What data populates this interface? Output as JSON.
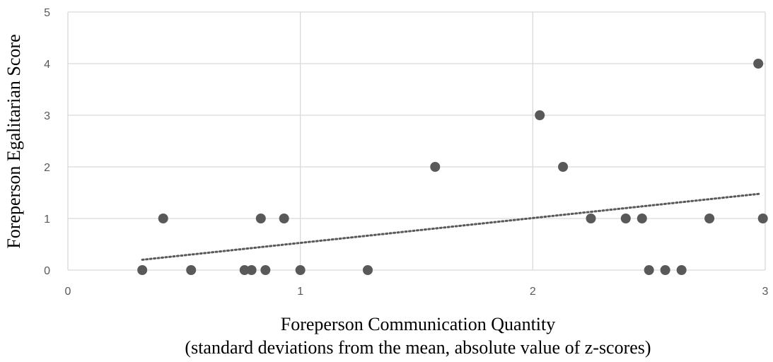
{
  "chart_data": {
    "type": "scatter",
    "xlabel": "Foreperson Communication Quantity",
    "xlabel_sub": "(standard deviations from the mean, absolute value of z-scores)",
    "ylabel": "Foreperson Egalitarian Score",
    "xlim": [
      0,
      3
    ],
    "ylim": [
      0,
      5
    ],
    "x_ticks": [
      "0",
      "1",
      "2",
      "3"
    ],
    "y_ticks": [
      "0",
      "1",
      "2",
      "3",
      "4",
      "5"
    ],
    "grid": true,
    "legend": "none",
    "trendline": {
      "style": "dotted",
      "x": [
        0.32,
        2.98
      ],
      "y": [
        0.2,
        1.48
      ]
    },
    "points": [
      {
        "x": 0.32,
        "y": 0
      },
      {
        "x": 0.41,
        "y": 1
      },
      {
        "x": 0.53,
        "y": 0
      },
      {
        "x": 0.76,
        "y": 0
      },
      {
        "x": 0.79,
        "y": 0
      },
      {
        "x": 0.83,
        "y": 1
      },
      {
        "x": 0.85,
        "y": 0
      },
      {
        "x": 0.93,
        "y": 1
      },
      {
        "x": 1.0,
        "y": 0
      },
      {
        "x": 1.29,
        "y": 0
      },
      {
        "x": 1.58,
        "y": 2
      },
      {
        "x": 2.03,
        "y": 3
      },
      {
        "x": 2.13,
        "y": 2
      },
      {
        "x": 2.25,
        "y": 1
      },
      {
        "x": 2.4,
        "y": 1
      },
      {
        "x": 2.47,
        "y": 1
      },
      {
        "x": 2.5,
        "y": 0
      },
      {
        "x": 2.57,
        "y": 0
      },
      {
        "x": 2.64,
        "y": 0
      },
      {
        "x": 2.76,
        "y": 1
      },
      {
        "x": 2.97,
        "y": 4
      },
      {
        "x": 2.99,
        "y": 1
      }
    ],
    "colors": {
      "point": "#595959",
      "trendline": "#595959",
      "grid": "#d9d9d9"
    }
  }
}
